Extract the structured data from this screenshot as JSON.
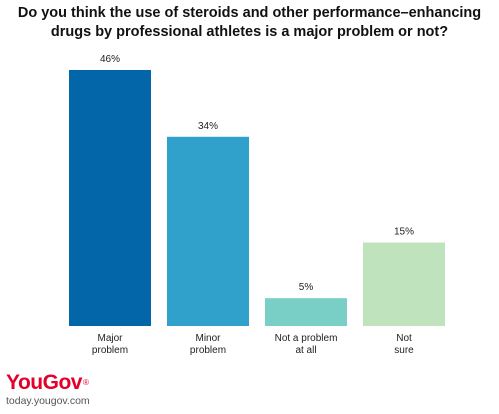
{
  "chart_data": {
    "type": "bar",
    "title_line1": "Do you think the use of steroids and other performance–enhancing",
    "title_line2": "drugs by professional athletes is a major problem or not?",
    "categories": [
      [
        "Major",
        "problem"
      ],
      [
        "Minor",
        "problem"
      ],
      [
        "Not a problem",
        "at all"
      ],
      [
        "Not",
        "sure"
      ]
    ],
    "values": [
      46,
      34,
      5,
      15
    ],
    "value_labels": [
      "46%",
      "34%",
      "5%",
      "15%"
    ],
    "colors": [
      "#0266a8",
      "#30a1cb",
      "#79cfc5",
      "#bfe3bd"
    ],
    "ylim": [
      0,
      46
    ],
    "grid": false,
    "legend": "none"
  },
  "brand": {
    "logo": "YouGov",
    "logo_mark": "®",
    "url": "today.yougov.com",
    "logo_color": "#e4002b"
  }
}
